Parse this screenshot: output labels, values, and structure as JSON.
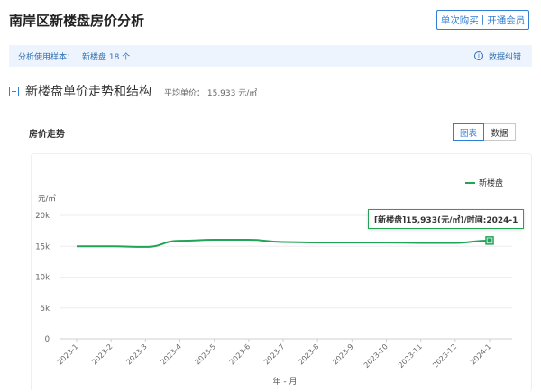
{
  "header": {
    "title": "南岸区新楼盘房价分析",
    "buy_label": "单次购买",
    "member_label": "开通会员"
  },
  "sample_bar": {
    "label": "分析使用样本：",
    "value": "新楼盘 18 个",
    "correct_label": "数据纠错",
    "info_icon": "i"
  },
  "section": {
    "title": "新楼盘单价走势和结构",
    "avg_label": "平均单价： 15,933 元/㎡"
  },
  "chart": {
    "label": "房价走势",
    "tab_chart": "图表",
    "tab_data": "数据"
  },
  "tooltip": {
    "text": "[新楼盘]15,933(元/㎡)/时间:2024-1"
  },
  "colors": {
    "accent": "#2f7fd6",
    "series": "#22a356",
    "sample_bg": "#edf4fd"
  },
  "chart_data": {
    "type": "line",
    "ylabel": "元/㎡",
    "xlabel": "年 - 月",
    "categories": [
      "2023-1",
      "2023-2",
      "2023-3",
      "2023-4",
      "2023-5",
      "2023-6",
      "2023-7",
      "2023-8",
      "2023-9",
      "2023-10",
      "2023-11",
      "2023-12",
      "2024-1"
    ],
    "ylim": [
      0,
      20000
    ],
    "yticks": [
      0,
      5000,
      10000,
      15000,
      20000
    ],
    "ytick_labels": [
      "0",
      "5k",
      "10k",
      "15k",
      "20k"
    ],
    "series": [
      {
        "name": "新楼盘",
        "values": [
          15000,
          15000,
          14900,
          15900,
          16050,
          16050,
          15700,
          15600,
          15600,
          15600,
          15550,
          15550,
          15933
        ]
      }
    ],
    "highlight_index": 12,
    "grid": true,
    "legend": "top-right"
  }
}
